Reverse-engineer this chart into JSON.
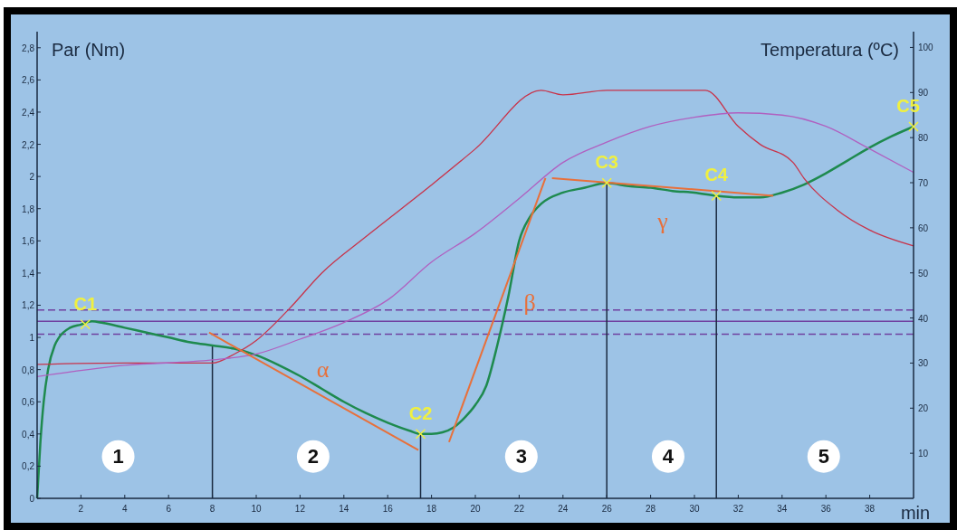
{
  "chart_data": {
    "type": "line",
    "xlabel": "min",
    "ylabel": "Par (Nm)",
    "y2label": "Temperatura (ºC)",
    "xlim": [
      0,
      40
    ],
    "xticks": [
      2,
      4,
      6,
      8,
      10,
      12,
      14,
      16,
      18,
      20,
      22,
      24,
      26,
      28,
      30,
      32,
      34,
      36,
      38
    ],
    "ylim": [
      0,
      2.9
    ],
    "yticks": [
      0,
      {
        "value": 0.2,
        "label": "0,2"
      },
      {
        "value": 0.4,
        "label": "0,4"
      },
      {
        "value": 0.6,
        "label": "0,6"
      },
      {
        "value": 0.8,
        "label": "0,8"
      },
      1,
      {
        "value": 1.2,
        "label": "1,2"
      },
      {
        "value": 1.4,
        "label": "1,4"
      },
      {
        "value": 1.6,
        "label": "1,6"
      },
      {
        "value": 1.8,
        "label": "1,8"
      },
      2,
      {
        "value": 2.2,
        "label": "2,2"
      },
      {
        "value": 2.4,
        "label": "2,4"
      },
      {
        "value": 2.6,
        "label": "2,6"
      },
      {
        "value": 2.8,
        "label": "2,8"
      }
    ],
    "y2lim": [
      0,
      103.5
    ],
    "y2ticks": [
      10,
      20,
      30,
      40,
      50,
      60,
      70,
      80,
      90,
      100
    ],
    "series": [
      {
        "color": "#1e8a4e",
        "x": [
          0,
          0.15,
          0.3,
          0.5,
          0.8,
          1,
          1.5,
          2,
          2.5,
          3,
          4,
          5,
          6,
          7,
          8,
          9,
          10,
          11,
          12,
          13,
          14,
          15,
          16,
          17,
          17.5,
          18,
          18.5,
          19,
          19.5,
          20,
          20.5,
          21,
          21.5,
          22,
          22.5,
          23,
          24,
          25,
          26,
          27,
          28,
          29,
          30,
          31,
          32,
          33,
          34,
          35,
          36,
          37,
          38,
          39,
          40
        ],
        "values": [
          0,
          0.35,
          0.6,
          0.8,
          0.95,
          1,
          1.06,
          1.08,
          1.1,
          1.09,
          1.06,
          1.03,
          1,
          0.97,
          0.95,
          0.93,
          0.89,
          0.83,
          0.76,
          0.68,
          0.6,
          0.53,
          0.47,
          0.42,
          0.4,
          0.4,
          0.41,
          0.44,
          0.5,
          0.58,
          0.7,
          0.95,
          1.25,
          1.6,
          1.75,
          1.83,
          1.9,
          1.93,
          1.96,
          1.94,
          1.93,
          1.91,
          1.9,
          1.88,
          1.87,
          1.87,
          1.9,
          1.95,
          2.02,
          2.1,
          2.18,
          2.25,
          2.31
        ]
      },
      {
        "color": "#c8334a",
        "axis": "y2",
        "x": [
          0,
          4,
          8,
          9,
          10,
          11.5,
          13,
          15,
          18,
          20,
          23,
          24,
          26,
          28,
          30.5,
          32,
          33,
          34.5,
          35,
          36.5,
          38,
          40
        ],
        "values": [
          29.7,
          30,
          30,
          32,
          35,
          42,
          50,
          58,
          69.5,
          77.5,
          90.5,
          89.5,
          90.5,
          90.5,
          90.5,
          82.5,
          78.5,
          74.5,
          71,
          64,
          59.5,
          56
        ]
      },
      {
        "color": "#b060c0",
        "axis": "y2",
        "x": [
          0,
          4,
          8,
          10,
          12,
          14,
          16,
          18,
          20,
          22,
          24,
          26,
          28,
          30,
          32,
          34,
          36,
          38,
          40
        ],
        "values": [
          27,
          29.5,
          30.7,
          32,
          35.3,
          39,
          44,
          52.4,
          58.8,
          66.5,
          74.5,
          79,
          82.5,
          84.5,
          85.5,
          85,
          82.5,
          77.5,
          72.3
        ]
      },
      {
        "color": "#e8703a",
        "x": [
          7.85,
          17.4
        ],
        "values": [
          1.03,
          0.3
        ]
      },
      {
        "color": "#e8703a",
        "x": [
          18.8,
          23.2
        ],
        "values": [
          0.35,
          1.99
        ]
      },
      {
        "color": "#e8703a",
        "x": [
          23.5,
          33.6
        ],
        "values": [
          1.99,
          1.88
        ]
      }
    ],
    "ref_lines": [
      {
        "axis": "y",
        "value": 1.1,
        "color": "#7040a0",
        "line_style": "solid"
      },
      {
        "axis": "y",
        "value": 1.17,
        "color": "#7040a0",
        "line_style": "dashed"
      },
      {
        "axis": "y",
        "value": 1.02,
        "color": "#7040a0",
        "line_style": "dashed"
      },
      {
        "axis": "x",
        "value": 8,
        "color": "#1a2a40",
        "line_style": "solid"
      },
      {
        "axis": "x",
        "value": 17.5,
        "color": "#1a2a40",
        "line_style": "solid"
      },
      {
        "axis": "x",
        "value": 26,
        "color": "#1a2a40",
        "line_style": "solid"
      },
      {
        "axis": "x",
        "value": 31,
        "color": "#1a2a40",
        "line_style": "solid"
      }
    ],
    "annotations": [
      {
        "text": "C1",
        "x": 2.2,
        "y": 1.08
      },
      {
        "text": "C2",
        "x": 17.5,
        "y": 0.4
      },
      {
        "text": "C3",
        "x": 26,
        "y": 1.96
      },
      {
        "text": "C4",
        "x": 31,
        "y": 1.88
      },
      {
        "text": "C5",
        "x": 40,
        "y": 2.31
      },
      "α",
      "β",
      "γ",
      {
        "text": "1",
        "x": 3.7,
        "y": 0.26
      },
      {
        "text": "2",
        "x": 12.6,
        "y": 0.26
      },
      {
        "text": "3",
        "x": 22.1,
        "y": 0.26
      },
      {
        "text": "4",
        "x": 28.8,
        "y": 0.26
      },
      {
        "text": "5",
        "x": 35.9,
        "y": 0.26
      }
    ]
  }
}
